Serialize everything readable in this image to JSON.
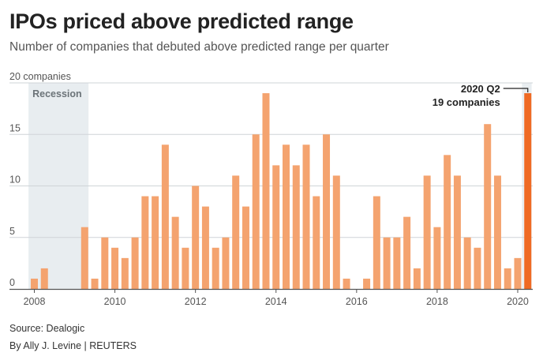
{
  "title": "IPOs priced above predicted range",
  "subtitle": "Number of companies that debuted above predicted range per quarter",
  "source": "Source: Dealogic",
  "byline": "By Ally J. Levine | REUTERS",
  "colors": {
    "bar": "#f4a36f",
    "highlight": "#ef6a24",
    "shade": "#e8edf0",
    "grid": "#cfd4d7",
    "axis": "#555555",
    "label": "#555555"
  },
  "chart_data": {
    "type": "bar",
    "title": "IPOs priced above predicted range",
    "subtitle": "Number of companies that debuted above predicted range per quarter",
    "unit_label": "20 companies",
    "ylim": [
      0,
      20
    ],
    "yticks": [
      0,
      5,
      10,
      15
    ],
    "xticks": [
      "2008",
      "2010",
      "2012",
      "2014",
      "2016",
      "2018",
      "2020"
    ],
    "grid": true,
    "first_quarter": "2008 Q1",
    "last_quarter": "2020 Q2",
    "values": [
      1,
      2,
      0,
      0,
      0,
      6,
      1,
      5,
      4,
      3,
      5,
      9,
      9,
      14,
      7,
      4,
      10,
      8,
      4,
      5,
      11,
      8,
      15,
      19,
      12,
      14,
      12,
      14,
      9,
      15,
      11,
      1,
      0,
      1,
      9,
      5,
      5,
      7,
      2,
      11,
      6,
      13,
      11,
      5,
      4,
      16,
      11,
      2,
      3,
      19
    ],
    "shaded_regions": [
      {
        "label": "Recession",
        "start_index": 0,
        "end_index": 5
      },
      {
        "label": "",
        "start_index": 49,
        "end_index": 49
      }
    ],
    "annotation": {
      "line1": "2020 Q2",
      "line2": "19 companies",
      "index": 49
    }
  }
}
